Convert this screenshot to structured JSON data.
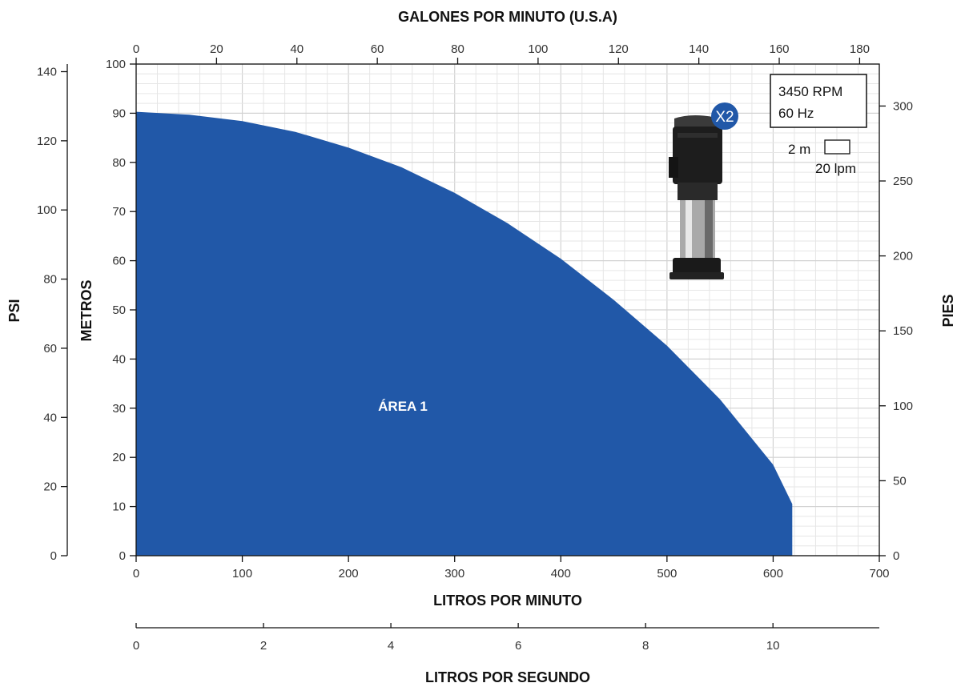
{
  "chart_data": {
    "type": "area",
    "color": "#2158A8",
    "top_axis": {
      "title": "GALONES POR MINUTO (U.S.A)",
      "ticks": [
        "0",
        "20",
        "40",
        "60",
        "80",
        "100",
        "120",
        "140",
        "160",
        "180"
      ],
      "range": [
        0,
        184.9
      ]
    },
    "bottom_axis": {
      "title": "LITROS POR MINUTO",
      "ticks": [
        "0",
        "100",
        "200",
        "300",
        "400",
        "500",
        "600",
        "700"
      ],
      "range": [
        0,
        700
      ]
    },
    "lps_axis": {
      "title": "LITROS POR SEGUNDO",
      "ticks": [
        "0",
        "2",
        "4",
        "6",
        "8",
        "10"
      ],
      "range": [
        0,
        11.67
      ]
    },
    "left_axis_meters": {
      "title": "METROS",
      "ticks": [
        "0",
        "10",
        "20",
        "30",
        "40",
        "50",
        "60",
        "70",
        "80",
        "90",
        "100"
      ],
      "range": [
        0,
        100
      ]
    },
    "left_axis_psi": {
      "title": "PSI",
      "ticks": [
        "0",
        "20",
        "40",
        "60",
        "80",
        "100",
        "120",
        "140"
      ],
      "range": [
        0,
        142.2
      ]
    },
    "right_axis_feet": {
      "title": "PIES",
      "ticks": [
        "0",
        "50",
        "100",
        "150",
        "200",
        "250",
        "300"
      ],
      "range": [
        0,
        328
      ]
    },
    "series": [
      {
        "name": "ÁREA 1",
        "x": [
          0,
          50,
          100,
          150,
          200,
          250,
          300,
          350,
          400,
          450,
          500,
          550,
          600,
          618
        ],
        "y": [
          90.3,
          89.7,
          88.4,
          86.2,
          83.0,
          79.0,
          73.8,
          67.6,
          60.4,
          52.0,
          42.7,
          31.8,
          18.5,
          10.5
        ]
      }
    ],
    "legend": {
      "speed": "3450 RPM",
      "freq": "60 Hz",
      "scale_vertical": "2 m",
      "scale_horizontal": "20 lpm"
    },
    "badge": "X2",
    "grid": true
  }
}
